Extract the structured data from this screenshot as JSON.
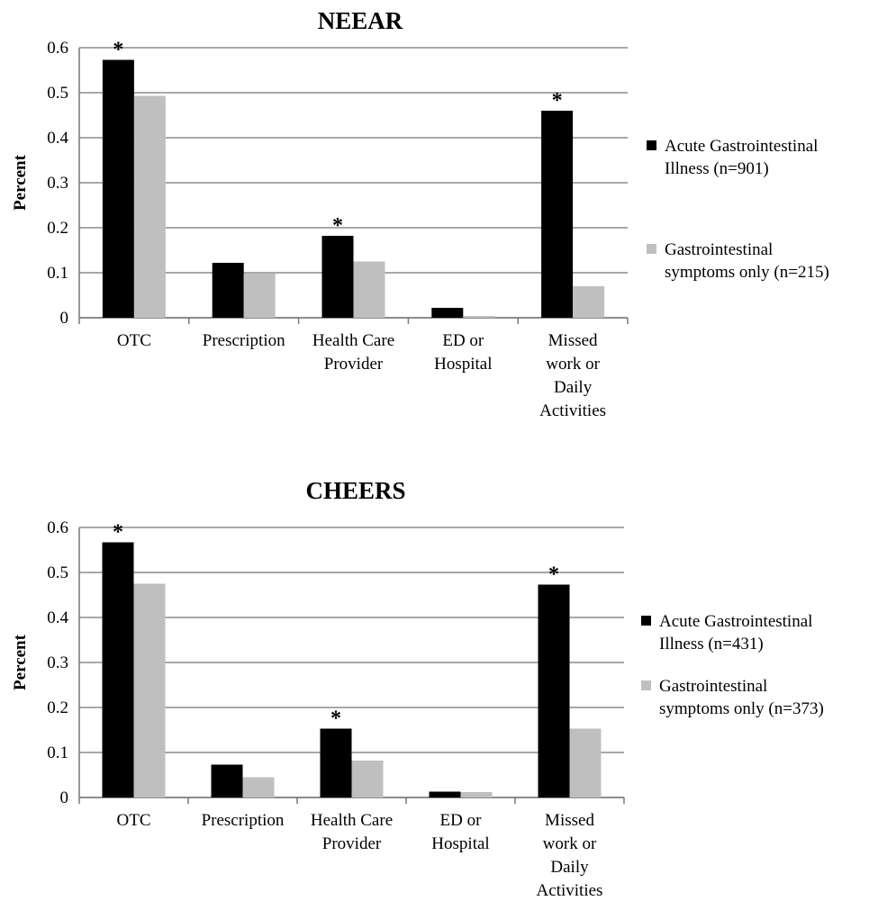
{
  "chart_data": [
    {
      "type": "bar",
      "title": "NEEAR",
      "ylabel": "Percent",
      "xlabel": "",
      "ylim": [
        0,
        0.6
      ],
      "yticks": [
        "0",
        "0.1",
        "0.2",
        "0.3",
        "0.4",
        "0.5",
        "0.6"
      ],
      "categories": [
        [
          "OTC"
        ],
        [
          "Prescription"
        ],
        [
          "Health Care",
          "Provider"
        ],
        [
          "ED or",
          "Hospital"
        ],
        [
          "Missed",
          "work or",
          "Daily",
          "Activities"
        ]
      ],
      "series": [
        {
          "name": [
            "Acute Gastrointestinal",
            "Illness (n=901)"
          ],
          "color": "#000000",
          "values": [
            0.573,
            0.122,
            0.182,
            0.022,
            0.46
          ]
        },
        {
          "name": [
            "Gastrointestinal",
            "symptoms only (n=215)"
          ],
          "color": "#bfbfbf",
          "values": [
            0.493,
            0.098,
            0.125,
            0.004,
            0.07
          ]
        }
      ],
      "significance_marker": "*",
      "significant_categories": [
        0,
        2,
        4
      ],
      "grid": true,
      "legend": "right"
    },
    {
      "type": "bar",
      "title": "CHEERS",
      "ylabel": "Percent",
      "xlabel": "",
      "ylim": [
        0,
        0.6
      ],
      "yticks": [
        "0",
        "0.1",
        "0.2",
        "0.3",
        "0.4",
        "0.5",
        "0.6"
      ],
      "categories": [
        [
          "OTC"
        ],
        [
          "Prescription"
        ],
        [
          "Health Care",
          "Provider"
        ],
        [
          "ED or",
          "Hospital"
        ],
        [
          "Missed",
          "work or",
          "Daily",
          "Activities"
        ]
      ],
      "series": [
        {
          "name": [
            "Acute Gastrointestinal",
            "Illness (n=431)"
          ],
          "color": "#000000",
          "values": [
            0.567,
            0.073,
            0.153,
            0.013,
            0.473
          ]
        },
        {
          "name": [
            "Gastrointestinal",
            "symptoms only (n=373)"
          ],
          "color": "#bfbfbf",
          "values": [
            0.475,
            0.045,
            0.082,
            0.012,
            0.153
          ]
        }
      ],
      "significance_marker": "*",
      "significant_categories": [
        0,
        2,
        4
      ],
      "grid": true,
      "legend": "right"
    }
  ]
}
